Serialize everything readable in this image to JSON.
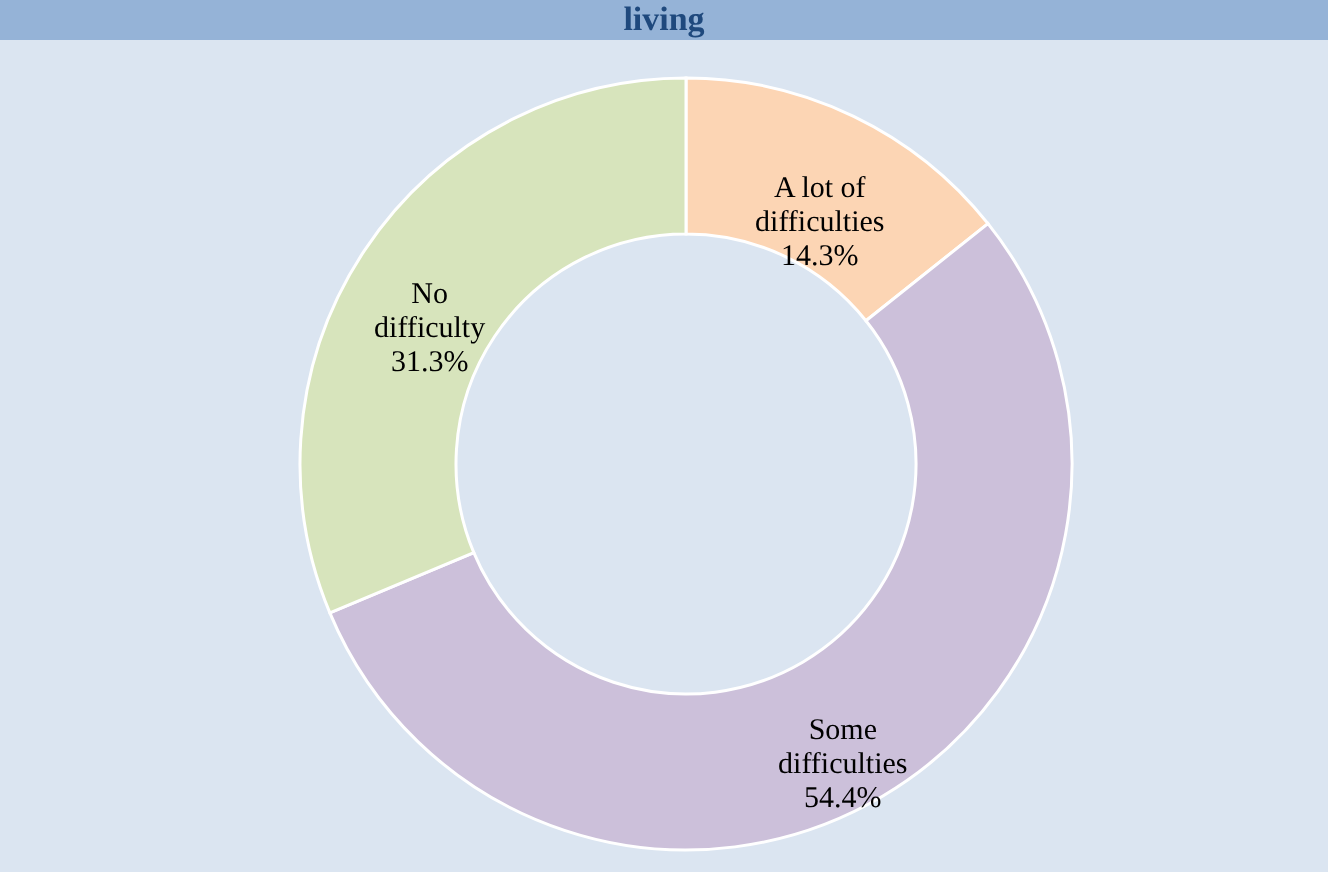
{
  "chart_data": {
    "type": "donut",
    "title": "living",
    "categories": [
      "A lot of difficulties",
      "Some difficulties",
      "No difficulty"
    ],
    "values": [
      14.3,
      54.4,
      31.3
    ],
    "value_labels": [
      "14.3%",
      "54.4%",
      "31.3%"
    ],
    "colors": [
      "#fcd5b4",
      "#ccc0da",
      "#d7e4bc"
    ]
  }
}
